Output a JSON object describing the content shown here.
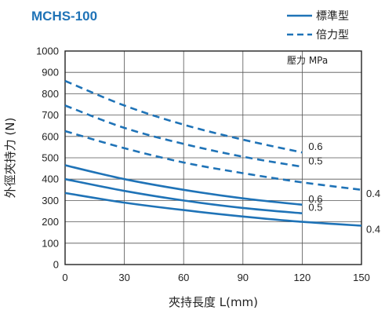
{
  "chart_data": {
    "type": "line",
    "title": "MCHS-100",
    "xlabel": "夾持長度 L(mm)",
    "ylabel": "外徑夾持力 (N)",
    "unit_note": "壓力 MPa",
    "xlim": [
      0,
      150
    ],
    "ylim": [
      0,
      1000
    ],
    "x_ticks": [
      0,
      30,
      60,
      90,
      120,
      150
    ],
    "y_ticks": [
      0,
      100,
      200,
      300,
      400,
      500,
      600,
      700,
      800,
      900,
      1000
    ],
    "grid": true,
    "legend_position": "top-right",
    "legend": [
      {
        "label": "標準型",
        "style": "solid"
      },
      {
        "label": "倍力型",
        "style": "dashed"
      }
    ],
    "colors": {
      "line": "#1f73b7",
      "title": "#1f73b7",
      "grid": "#444444"
    },
    "series": [
      {
        "style": "dashed",
        "end_label": "0.6",
        "x": [
          0,
          30,
          60,
          90,
          120
        ],
        "y": [
          860,
          745,
          655,
          585,
          525
        ]
      },
      {
        "style": "dashed",
        "end_label": "0.5",
        "x": [
          0,
          30,
          60,
          90,
          120
        ],
        "y": [
          745,
          640,
          565,
          505,
          458
        ]
      },
      {
        "style": "dashed",
        "end_label": "0.4",
        "x": [
          0,
          30,
          60,
          90,
          120,
          150
        ],
        "y": [
          625,
          545,
          478,
          428,
          385,
          350
        ]
      },
      {
        "style": "solid",
        "end_label": "0.6",
        "x": [
          0,
          30,
          60,
          90,
          120
        ],
        "y": [
          465,
          400,
          350,
          310,
          280
        ]
      },
      {
        "style": "solid",
        "end_label": "0.5",
        "x": [
          0,
          30,
          60,
          90,
          120
        ],
        "y": [
          400,
          345,
          300,
          265,
          240
        ]
      },
      {
        "style": "solid",
        "end_label": "0.4",
        "x": [
          0,
          30,
          60,
          90,
          120,
          150
        ],
        "y": [
          335,
          290,
          255,
          225,
          200,
          182
        ]
      }
    ]
  }
}
